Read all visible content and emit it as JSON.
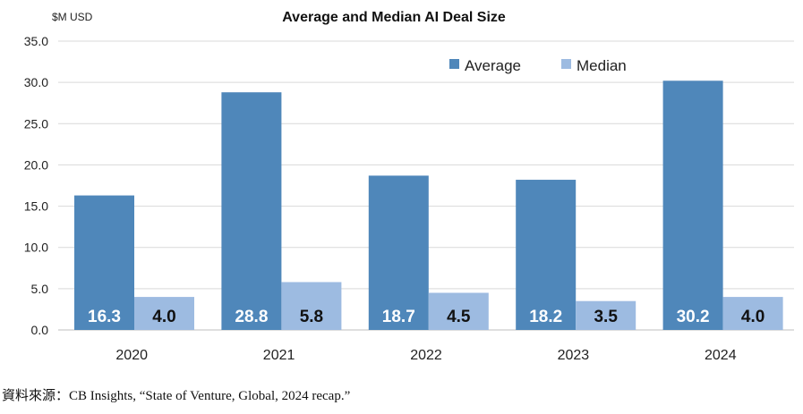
{
  "chart_data": {
    "type": "bar",
    "title": "Average and Median AI Deal Size",
    "ylabel": "$M USD",
    "xlabel": "",
    "categories": [
      "2020",
      "2021",
      "2022",
      "2023",
      "2024"
    ],
    "series": [
      {
        "name": "Average",
        "values": [
          16.3,
          28.8,
          18.7,
          18.2,
          30.2
        ],
        "labels": [
          "16.3",
          "28.8",
          "18.7",
          "18.2",
          "30.2"
        ]
      },
      {
        "name": "Median",
        "values": [
          4.0,
          5.8,
          4.5,
          3.5,
          4.0
        ],
        "labels": [
          "4.0",
          "5.8",
          "4.5",
          "3.5",
          "4.0"
        ]
      }
    ],
    "ylim": [
      0,
      35
    ],
    "yticks": [
      "0.0",
      "5.0",
      "10.0",
      "15.0",
      "20.0",
      "25.0",
      "30.0",
      "35.0"
    ],
    "grid": true,
    "legend_position": "top-right"
  },
  "colors": {
    "average": "#4f87ba",
    "median": "#9dbbe1",
    "grid": "#d9d9d9"
  },
  "source": "資料來源：CB Insights, “State of Venture, Global, 2024 recap.”"
}
